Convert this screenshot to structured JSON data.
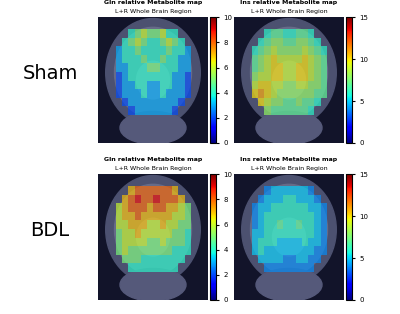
{
  "rows": [
    "Sham",
    "BDL"
  ],
  "chart_data": [
    {
      "type": "heatmap",
      "title": "Gln relative Metabolite map",
      "subtitle": "L+R Whole Brain Region",
      "tick_labels": false,
      "colorbar": {
        "range": [
          0,
          10
        ],
        "ticks": [
          0,
          2,
          4,
          6,
          8,
          10
        ]
      },
      "cells": [
        [
          null,
          null,
          4,
          5,
          6,
          5,
          5,
          6,
          4,
          4,
          null,
          null
        ],
        [
          null,
          4,
          5,
          6,
          5,
          4,
          4,
          5,
          6,
          5,
          4,
          null
        ],
        [
          3,
          4,
          4,
          5,
          4,
          4,
          4,
          4,
          5,
          4,
          4,
          3
        ],
        [
          3,
          4,
          4,
          4,
          5,
          4,
          4,
          5,
          4,
          4,
          3,
          3
        ],
        [
          3,
          3,
          4,
          4,
          4,
          5,
          5,
          4,
          4,
          4,
          3,
          3
        ],
        [
          2,
          3,
          4,
          4,
          4,
          4,
          4,
          4,
          4,
          3,
          3,
          2
        ],
        [
          2,
          3,
          3,
          4,
          4,
          3,
          3,
          4,
          4,
          3,
          3,
          2
        ],
        [
          2,
          3,
          3,
          3,
          4,
          3,
          3,
          4,
          3,
          3,
          3,
          2
        ],
        [
          null,
          2,
          3,
          3,
          3,
          3,
          3,
          3,
          3,
          3,
          2,
          null
        ],
        [
          null,
          null,
          2,
          3,
          3,
          3,
          3,
          3,
          3,
          2,
          null,
          null
        ]
      ]
    },
    {
      "type": "heatmap",
      "title": "Ins relative Metabolite map",
      "subtitle": "L+R Whole Brain Region",
      "tick_labels": false,
      "colorbar": {
        "range": [
          0,
          15
        ],
        "ticks": [
          0,
          5,
          10,
          15
        ]
      },
      "cells": [
        [
          null,
          null,
          6,
          7,
          7,
          6,
          6,
          7,
          7,
          6,
          null,
          null
        ],
        [
          null,
          6,
          7,
          8,
          8,
          7,
          7,
          8,
          8,
          7,
          6,
          null
        ],
        [
          6,
          7,
          8,
          9,
          8,
          8,
          8,
          8,
          9,
          8,
          7,
          6
        ],
        [
          7,
          8,
          9,
          10,
          9,
          9,
          9,
          9,
          10,
          9,
          8,
          7
        ],
        [
          7,
          8,
          9,
          10,
          10,
          9,
          9,
          10,
          10,
          9,
          8,
          7
        ],
        [
          8,
          9,
          9,
          10,
          10,
          9,
          9,
          10,
          10,
          9,
          8,
          7
        ],
        [
          9,
          10,
          10,
          9,
          9,
          8,
          8,
          9,
          9,
          8,
          8,
          7
        ],
        [
          10,
          11,
          10,
          9,
          8,
          8,
          8,
          8,
          8,
          8,
          7,
          7
        ],
        [
          null,
          10,
          9,
          8,
          8,
          7,
          7,
          8,
          7,
          7,
          6,
          null
        ],
        [
          null,
          null,
          8,
          7,
          7,
          7,
          7,
          7,
          7,
          6,
          null,
          null
        ]
      ]
    },
    {
      "type": "heatmap",
      "title": "Gln relative Metabolite map",
      "subtitle": "L+R Whole Brain Region",
      "tick_labels": false,
      "colorbar": {
        "range": [
          0,
          10
        ],
        "ticks": [
          0,
          2,
          4,
          6,
          8,
          10
        ]
      },
      "cells": [
        [
          null,
          null,
          7,
          8,
          8,
          8,
          8,
          8,
          8,
          7,
          null,
          null
        ],
        [
          null,
          7,
          8,
          9,
          8,
          8,
          9,
          8,
          8,
          8,
          7,
          null
        ],
        [
          6,
          7,
          8,
          8,
          8,
          7,
          8,
          8,
          7,
          7,
          6,
          5
        ],
        [
          6,
          7,
          7,
          8,
          7,
          7,
          7,
          7,
          7,
          6,
          6,
          5
        ],
        [
          6,
          6,
          7,
          7,
          7,
          6,
          6,
          7,
          6,
          6,
          5,
          5
        ],
        [
          5,
          6,
          6,
          7,
          6,
          6,
          6,
          6,
          6,
          5,
          5,
          4
        ],
        [
          5,
          6,
          6,
          6,
          6,
          5,
          5,
          6,
          5,
          5,
          5,
          4
        ],
        [
          5,
          6,
          5,
          5,
          5,
          5,
          5,
          5,
          5,
          4,
          4,
          4
        ],
        [
          null,
          5,
          5,
          5,
          4,
          4,
          4,
          4,
          4,
          4,
          4,
          null
        ],
        [
          null,
          null,
          4,
          4,
          4,
          4,
          4,
          4,
          4,
          4,
          null,
          null
        ]
      ]
    },
    {
      "type": "heatmap",
      "title": "Ins relative Metabolite map",
      "subtitle": "L+R Whole Brain Region",
      "tick_labels": false,
      "colorbar": {
        "range": [
          0,
          15
        ],
        "ticks": [
          0,
          5,
          10,
          15
        ]
      },
      "cells": [
        [
          null,
          null,
          4,
          5,
          5,
          5,
          5,
          5,
          5,
          4,
          null,
          null
        ],
        [
          null,
          4,
          5,
          5,
          5,
          6,
          6,
          5,
          5,
          5,
          4,
          null
        ],
        [
          4,
          5,
          5,
          6,
          6,
          6,
          6,
          6,
          6,
          5,
          5,
          4
        ],
        [
          4,
          5,
          6,
          6,
          6,
          6,
          6,
          6,
          6,
          6,
          5,
          4
        ],
        [
          4,
          5,
          6,
          6,
          7,
          6,
          6,
          7,
          6,
          6,
          5,
          4
        ],
        [
          5,
          5,
          6,
          6,
          6,
          6,
          6,
          6,
          6,
          6,
          5,
          4
        ],
        [
          5,
          6,
          6,
          6,
          5,
          5,
          5,
          5,
          6,
          5,
          5,
          4
        ],
        [
          5,
          6,
          5,
          5,
          5,
          5,
          5,
          5,
          5,
          5,
          4,
          4
        ],
        [
          null,
          5,
          5,
          5,
          5,
          4,
          4,
          5,
          5,
          4,
          4,
          null
        ],
        [
          null,
          null,
          4,
          4,
          4,
          4,
          4,
          4,
          4,
          4,
          null,
          null
        ]
      ]
    }
  ]
}
